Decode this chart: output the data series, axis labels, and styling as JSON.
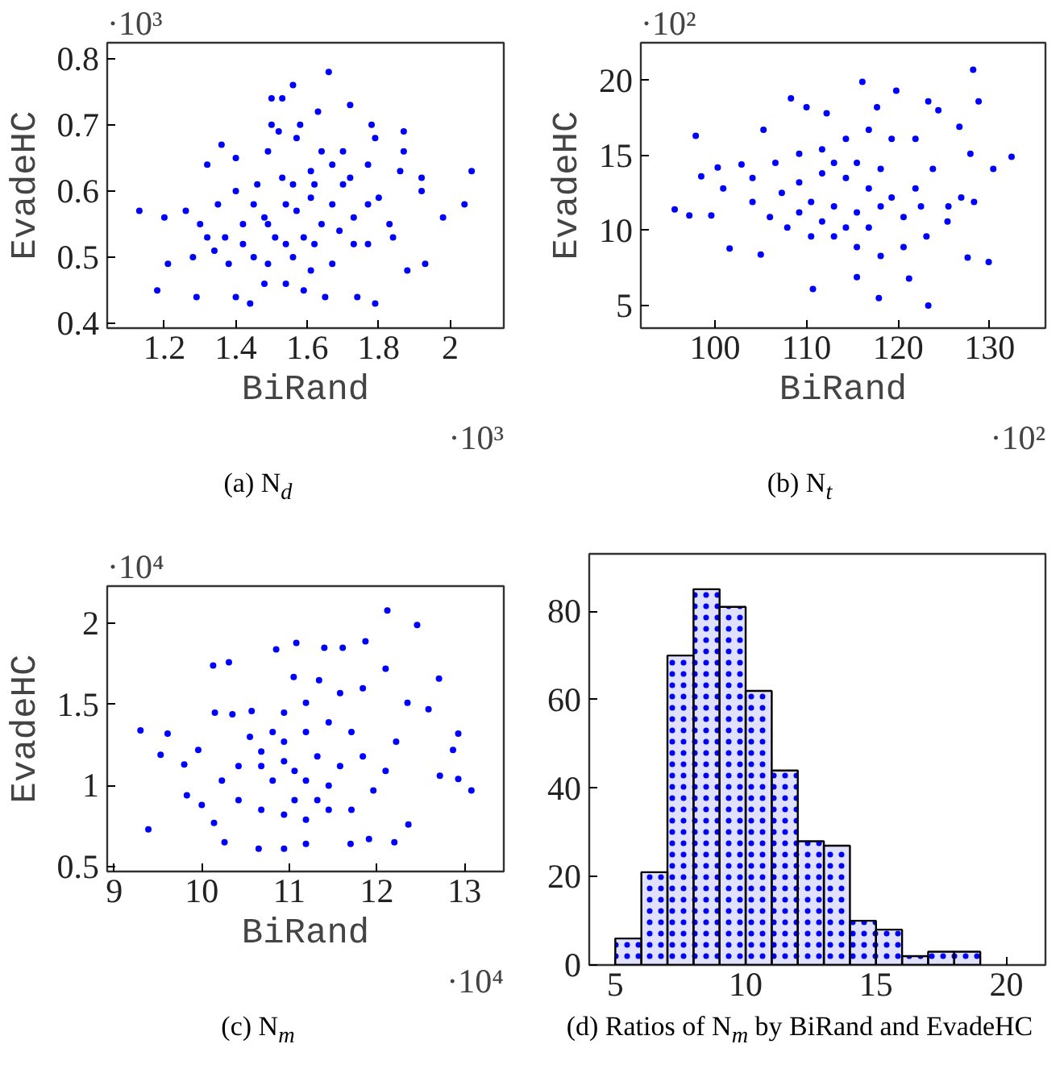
{
  "chart_data": [
    {
      "type": "scatter",
      "xlabel": "BiRand",
      "ylabel": "EvadeHC",
      "marker": "circle",
      "grid": false,
      "xlim": [
        1.04,
        2.15
      ],
      "ylim": [
        0.393,
        0.824
      ],
      "xticks": [
        1.2,
        1.4,
        1.6,
        1.8,
        2
      ],
      "yticks": [
        0.4,
        0.5,
        0.6,
        0.7,
        0.8
      ],
      "annotations": [
        "·10³",
        "·10³",
        "(a) N$_{d}$"
      ],
      "series": [
        {
          "color": "#0000ff",
          "x": [
            1.13,
            1.18,
            1.29,
            1.4,
            1.44,
            1.79,
            1.66,
            1.56,
            1.5,
            1.53,
            1.72,
            1.63,
            2.06,
            2.04,
            1.93,
            1.98,
            1.92,
            1.92,
            1.88,
            1.74,
            1.65,
            1.59,
            1.3,
            1.28,
            1.21,
            1.2,
            1.26,
            1.36,
            1.32,
            1.5,
            1.52,
            1.58,
            1.78,
            1.79,
            1.87,
            1.87,
            1.86,
            1.8,
            1.83,
            1.84,
            1.77,
            1.73,
            1.67,
            1.61,
            1.54,
            1.48,
            1.42,
            1.37,
            1.4,
            1.46,
            1.53,
            1.61,
            1.67,
            1.72,
            1.77,
            1.69,
            1.62,
            1.56,
            1.49,
            1.45,
            1.54,
            1.61,
            1.67,
            1.48,
            1.42,
            1.35,
            1.4,
            1.49,
            1.57,
            1.64,
            1.7,
            1.77,
            1.57,
            1.64,
            1.51,
            1.59,
            1.45,
            1.49,
            1.56,
            1.62,
            1.7,
            1.73,
            1.38,
            1.34,
            1.32,
            1.54
          ],
          "values": [
            0.57,
            0.45,
            0.44,
            0.44,
            0.43,
            0.43,
            0.78,
            0.76,
            0.74,
            0.74,
            0.73,
            0.72,
            0.63,
            0.58,
            0.49,
            0.56,
            0.62,
            0.6,
            0.48,
            0.44,
            0.44,
            0.45,
            0.55,
            0.5,
            0.49,
            0.56,
            0.57,
            0.67,
            0.64,
            0.7,
            0.69,
            0.7,
            0.7,
            0.68,
            0.69,
            0.66,
            0.63,
            0.59,
            0.55,
            0.53,
            0.52,
            0.56,
            0.58,
            0.59,
            0.58,
            0.56,
            0.55,
            0.53,
            0.6,
            0.61,
            0.62,
            0.63,
            0.64,
            0.62,
            0.58,
            0.54,
            0.52,
            0.5,
            0.49,
            0.5,
            0.46,
            0.48,
            0.49,
            0.46,
            0.52,
            0.58,
            0.65,
            0.66,
            0.68,
            0.66,
            0.66,
            0.64,
            0.57,
            0.55,
            0.53,
            0.53,
            0.58,
            0.55,
            0.61,
            0.61,
            0.61,
            0.52,
            0.49,
            0.51,
            0.53,
            0.52
          ]
        }
      ]
    },
    {
      "type": "scatter",
      "xlabel": "BiRand",
      "ylabel": "EvadeHC",
      "marker": "circle",
      "grid": false,
      "xlim": [
        91.9,
        136.1
      ],
      "ylim": [
        3.5,
        22.5
      ],
      "xticks": [
        100,
        110,
        120,
        130
      ],
      "yticks": [
        5,
        10,
        15,
        20
      ],
      "annotations": [
        "·10²",
        "·10²",
        "(b) N$_{t}$"
      ],
      "series": [
        {
          "color": "#0000ff",
          "x": [
            95.6,
            97.2,
            97.9,
            98.5,
            110.7,
            117.9,
            123.3,
            128.2,
            116.1,
            119.8,
            108.3,
            123.3,
            128.8,
            132.4,
            130.4,
            129.9,
            127.6,
            121.2,
            115.5,
            105.0,
            101.6,
            100.3,
            102.9,
            105.3,
            110.0,
            112.2,
            117.7,
            124.4,
            126.7,
            127.9,
            126.9,
            125.4,
            123.1,
            120.6,
            118.1,
            115.5,
            113.0,
            110.5,
            107.9,
            106.0,
            104.1,
            104.1,
            106.6,
            109.2,
            111.7,
            114.3,
            116.8,
            119.3,
            121.9,
            123.8,
            121.9,
            119.3,
            116.8,
            114.3,
            111.7,
            109.2,
            107.3,
            110.5,
            113.0,
            115.5,
            118.1,
            120.6,
            122.5,
            115.5,
            118.1,
            113.0,
            111.7,
            109.2,
            116.8,
            114.3,
            125.5,
            128.3,
            100.9,
            99.6
          ],
          "values": [
            11.4,
            11.0,
            16.3,
            13.6,
            6.1,
            5.5,
            5.0,
            20.7,
            19.9,
            19.3,
            18.8,
            18.6,
            18.6,
            14.9,
            14.1,
            7.9,
            8.2,
            6.8,
            6.9,
            8.4,
            8.8,
            14.2,
            14.4,
            16.7,
            18.2,
            17.8,
            18.2,
            18.0,
            16.9,
            15.1,
            12.2,
            10.6,
            9.6,
            8.9,
            8.3,
            8.9,
            9.6,
            9.6,
            10.2,
            10.9,
            11.9,
            13.5,
            14.5,
            15.1,
            15.4,
            16.1,
            16.7,
            16.1,
            16.1,
            14.1,
            12.8,
            12.2,
            12.8,
            13.5,
            13.8,
            13.2,
            12.5,
            11.9,
            11.6,
            11.2,
            11.6,
            10.9,
            11.6,
            14.5,
            14.1,
            14.5,
            10.6,
            11.2,
            10.2,
            10.2,
            11.6,
            11.9,
            12.8,
            11.0
          ]
        }
      ]
    },
    {
      "type": "scatter",
      "xlabel": "BiRand",
      "ylabel": "EvadeHC",
      "marker": "circle",
      "grid": false,
      "xlim": [
        8.92,
        13.45
      ],
      "ylim": [
        0.47,
        2.23
      ],
      "xticks": [
        9,
        10,
        11,
        12,
        13
      ],
      "yticks": [
        0.5,
        1,
        1.5,
        2
      ],
      "annotations": [
        "·10⁴",
        "·10⁴",
        "(c) N$_{m}$"
      ],
      "series": [
        {
          "color": "#0000ff",
          "x": [
            9.3,
            9.39,
            9.53,
            9.61,
            12.12,
            12.46,
            11.08,
            11.4,
            11.61,
            10.85,
            10.13,
            10.31,
            11.87,
            12.71,
            12.59,
            12.93,
            12.87,
            12.72,
            12.93,
            13.08,
            12.36,
            12.2,
            11.91,
            11.7,
            11.19,
            10.94,
            10.65,
            10.26,
            10.14,
            10.0,
            9.83,
            9.8,
            9.96,
            10.15,
            10.35,
            10.57,
            11.05,
            11.34,
            11.58,
            11.84,
            12.1,
            12.35,
            12.22,
            12.1,
            11.96,
            11.71,
            11.45,
            11.19,
            10.94,
            10.68,
            10.42,
            10.23,
            10.42,
            10.68,
            10.94,
            11.19,
            11.45,
            11.71,
            11.84,
            11.58,
            11.32,
            11.06,
            10.81,
            10.94,
            11.19,
            11.45,
            11.32,
            11.06,
            10.81,
            10.55,
            11.19,
            10.94,
            10.68
          ],
          "values": [
            1.34,
            0.73,
            1.19,
            1.32,
            2.08,
            1.99,
            1.88,
            1.85,
            1.85,
            1.84,
            1.74,
            1.76,
            1.89,
            1.66,
            1.47,
            1.32,
            1.22,
            1.06,
            1.04,
            0.97,
            0.76,
            0.65,
            0.67,
            0.64,
            0.64,
            0.61,
            0.61,
            0.65,
            0.77,
            0.88,
            0.94,
            1.13,
            1.22,
            1.45,
            1.44,
            1.46,
            1.67,
            1.65,
            1.57,
            1.6,
            1.72,
            1.51,
            1.27,
            1.09,
            0.97,
            0.85,
            0.85,
            0.79,
            0.82,
            0.85,
            0.91,
            1.03,
            1.12,
            1.21,
            1.27,
            1.33,
            1.39,
            1.33,
            1.18,
            1.12,
            1.18,
            1.09,
            1.03,
            1.15,
            1.03,
            1.0,
            0.91,
            0.91,
            1.33,
            1.3,
            1.51,
            1.45,
            1.12
          ]
        }
      ]
    },
    {
      "type": "histogram",
      "grid": false,
      "xlim": [
        4,
        21.5
      ],
      "ylim": [
        0,
        93
      ],
      "xticks": [
        5,
        10,
        15,
        20
      ],
      "yticks": [
        0,
        20,
        40,
        60,
        80
      ],
      "annotations": [
        "(d) Ratios of N$_{m}$ by BiRand and EvadeHC"
      ],
      "bins": [
        5,
        6,
        7,
        8,
        9,
        10,
        11,
        12,
        13,
        14,
        15,
        16,
        17,
        18,
        19
      ],
      "series": [
        {
          "color": "#0000ff",
          "values": [
            6,
            21,
            70,
            85,
            81,
            62,
            44,
            28,
            27,
            10,
            8,
            2,
            3,
            3
          ]
        }
      ]
    }
  ]
}
